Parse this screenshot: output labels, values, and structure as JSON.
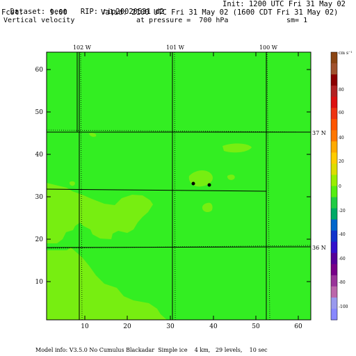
{
  "header": {
    "dataset": "Dataset: test",
    "rip": "RIP: rip20020531",
    "domain": "d2",
    "init": "Init: 1200 UTC Fri 31 May 02",
    "fcst_label": "Fcst:",
    "fcst_value": "9.00",
    "valid": "Valid: 2100 UTC Fri 31 May 02 (1600 CDT Fri 31 May 02)",
    "field": "Vertical velocity",
    "pressure": "at pressure =  700 hPa",
    "smoothing": "sm= 1"
  },
  "map": {
    "lon_labels": [
      "102 W",
      "101 W",
      "100 W"
    ],
    "lat_labels": [
      "37 N",
      "36 N"
    ],
    "x_ticks": [
      "10",
      "20",
      "30",
      "40",
      "50",
      "60"
    ],
    "y_ticks": [
      "10",
      "20",
      "30",
      "40",
      "50",
      "60"
    ],
    "x_range": [
      1,
      64
    ],
    "y_range": [
      1,
      64
    ],
    "background_color": "#33ee22",
    "patch_color": "#77ee11"
  },
  "colorbar": {
    "unit": "cm s⁻¹",
    "labels": [
      "80",
      "60",
      "40",
      "20",
      "0",
      "-20",
      "-40",
      "-60",
      "-80",
      "-100"
    ],
    "colors": [
      "#8b4513",
      "#a0522d",
      "#8b0000",
      "#b22222",
      "#dd1111",
      "#ee3311",
      "#ff5500",
      "#ff7700",
      "#ffaa00",
      "#ffcc00",
      "#dddd00",
      "#99ee00",
      "#55ee11",
      "#22cc44",
      "#00aa66",
      "#0066cc",
      "#1133cc",
      "#3311cc",
      "#550099",
      "#770088",
      "#993399",
      "#bb66aa",
      "#9999ee",
      "#8888ff"
    ]
  },
  "footer": {
    "model_info": "Model info: V3.5.0 No Cumulus Blackadar  Simple ice    4 km,   29 levels,    10 sec"
  }
}
